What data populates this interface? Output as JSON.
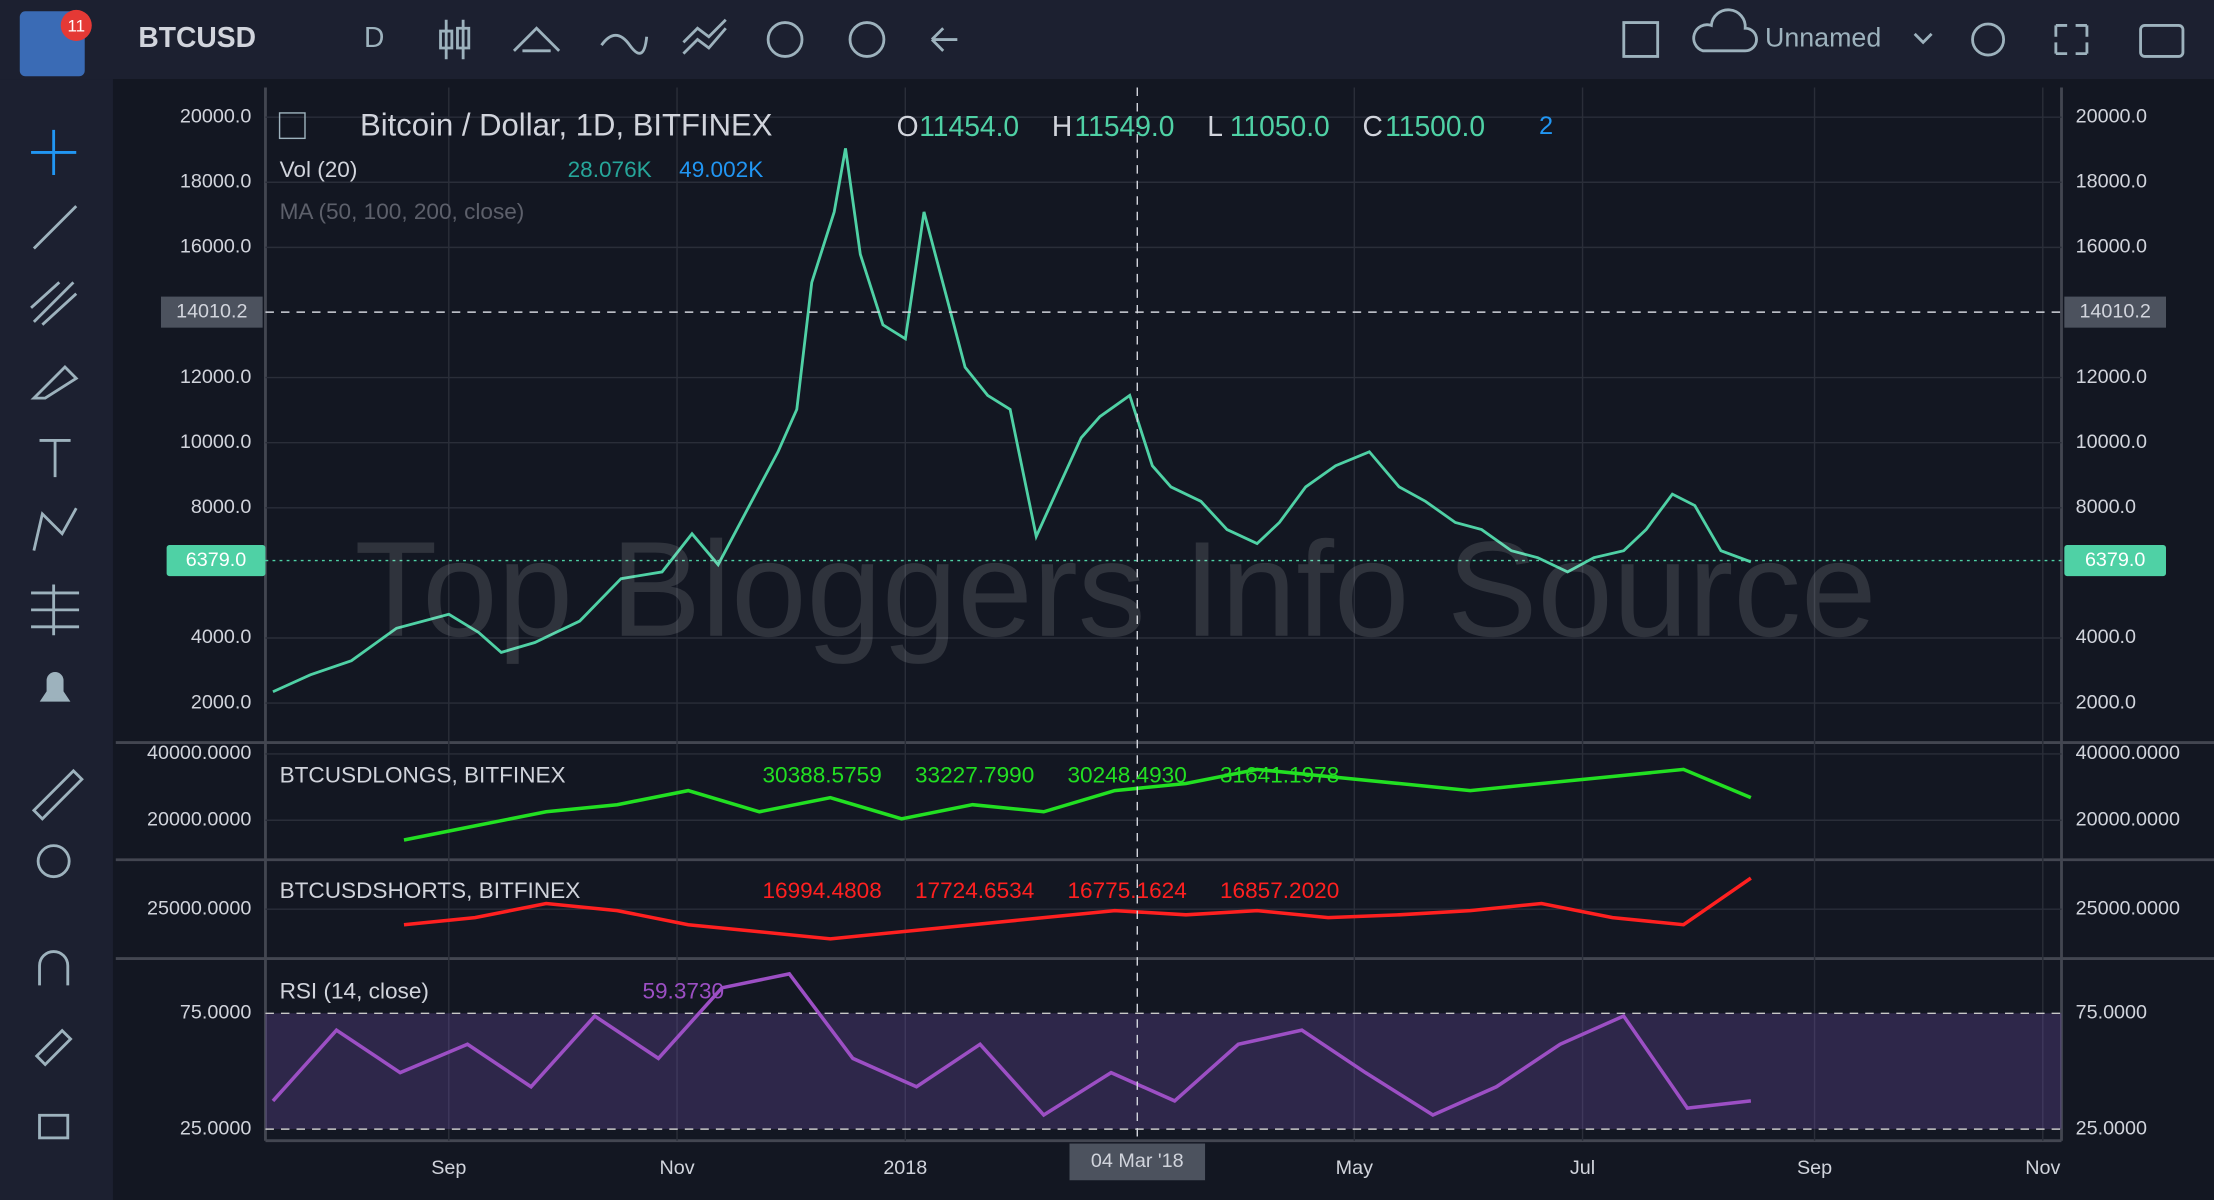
{
  "toolbar": {
    "badge": "11",
    "symbol": "BTCUSD",
    "interval": "D",
    "layout_name": "Unnamed"
  },
  "watermark": "Top Bloggers Info Source",
  "legend": {
    "title": "Bitcoin / Dollar, 1D, BITFINEX",
    "ohlc": [
      {
        "key": "O",
        "value": "11454.0"
      },
      {
        "key": "H",
        "value": "11549.0"
      },
      {
        "key": "L",
        "value": "11050.0"
      },
      {
        "key": "C",
        "value": "11500.0"
      }
    ],
    "alerts": "2",
    "volume": {
      "name": "Vol (20)",
      "values": [
        "28.076K",
        "49.002K"
      ]
    },
    "ma": "MA (50, 100, 200, close)"
  },
  "xlim": [
    -18,
    462
  ],
  "xticks": [
    {
      "value": 31,
      "label": "Sep"
    },
    {
      "value": 92,
      "label": "Nov"
    },
    {
      "value": 153,
      "label": "2018"
    },
    {
      "value": 273,
      "label": "May"
    },
    {
      "value": 334,
      "label": "Jul"
    },
    {
      "value": 396,
      "label": "Sep"
    },
    {
      "value": 457,
      "label": "Nov"
    }
  ],
  "crosshair": {
    "x": {
      "value": 215,
      "label": "04 Mar '18"
    },
    "y": {
      "value": 14010.2,
      "label": "14010.2"
    }
  },
  "price_pane": {
    "type": "line",
    "color": "#4fd1a5",
    "ylim": [
      830,
      20910
    ],
    "yticks": [
      {
        "value": 2000,
        "label": "2000.0"
      },
      {
        "value": 4000,
        "label": "4000.0"
      },
      {
        "value": 8000,
        "label": "8000.0"
      },
      {
        "value": 10000,
        "label": "10000.0"
      },
      {
        "value": 12000,
        "label": "12000.0"
      },
      {
        "value": 16000,
        "label": "16000.0"
      },
      {
        "value": 18000,
        "label": "18000.0"
      },
      {
        "value": 20000,
        "label": "20000.0"
      }
    ],
    "last_price": {
      "value": 6379.0,
      "label": "6379.0"
    },
    "x": [
      -16,
      -6,
      5,
      17,
      31,
      39,
      45,
      54,
      66,
      77,
      88,
      96,
      103,
      111,
      119,
      124,
      128,
      134,
      137,
      141,
      147,
      153,
      158,
      164,
      169,
      175,
      181,
      188,
      194,
      200,
      205,
      213,
      219,
      224,
      232,
      239,
      247,
      253,
      260,
      268,
      277,
      285,
      292,
      300,
      307,
      315,
      322,
      330,
      337,
      345,
      351,
      358,
      364,
      371,
      379
    ],
    "values": [
      2350,
      2870,
      3300,
      4300,
      4730,
      4170,
      3560,
      3860,
      4520,
      5820,
      6030,
      7200,
      6250,
      7990,
      9720,
      11020,
      14920,
      17090,
      19040,
      15790,
      13620,
      13190,
      17090,
      14490,
      12320,
      11450,
      11020,
      7120,
      8640,
      10150,
      10800,
      11450,
      9290,
      8640,
      8200,
      7330,
      6900,
      7550,
      8640,
      9290,
      9720,
      8640,
      8200,
      7550,
      7330,
      6680,
      6470,
      6030,
      6470,
      6680,
      7330,
      8420,
      8070,
      6680,
      6340
    ]
  },
  "longs_pane": {
    "type": "line",
    "name": "BTCUSDLONGS, BITFINEX",
    "color": "#22e022",
    "legend_values": [
      "30388.5759",
      "33227.7990",
      "30248.4930",
      "31641.1978"
    ],
    "ylim": [
      8500,
      43000
    ],
    "yticks": [
      {
        "value": 40000,
        "label": "40000.0000"
      },
      {
        "value": 20000,
        "label": "20000.0000"
      }
    ],
    "x": [
      19,
      38,
      57,
      76,
      95,
      114,
      133,
      152,
      171,
      190,
      209,
      228,
      247,
      266,
      285,
      304,
      323,
      342,
      361,
      379
    ],
    "values": [
      14040,
      18300,
      22550,
      24680,
      28940,
      22550,
      26810,
      20430,
      24680,
      22550,
      28940,
      31060,
      35320,
      33190,
      31060,
      28940,
      31060,
      33190,
      35320,
      26810
    ]
  },
  "shorts_pane": {
    "type": "line",
    "name": "BTCUSDSHORTS, BITFINEX",
    "color": "#ff2020",
    "legend_values": [
      "16994.4808",
      "17724.6534",
      "16775.1624",
      "16857.2020"
    ],
    "ylim": [
      18000,
      32000
    ],
    "yticks": [
      {
        "value": 25000,
        "label": "25000.0000"
      }
    ],
    "x": [
      19,
      38,
      57,
      76,
      95,
      114,
      133,
      152,
      171,
      190,
      209,
      228,
      247,
      266,
      285,
      304,
      323,
      342,
      361,
      379
    ],
    "values": [
      22740,
      23760,
      25820,
      24790,
      22740,
      21710,
      20680,
      21710,
      22740,
      23760,
      24790,
      24180,
      24790,
      23760,
      24180,
      24790,
      25820,
      23760,
      22740,
      29530
    ]
  },
  "rsi_pane": {
    "type": "line",
    "name": "RSI (14, close)",
    "color": "#9c4fc4",
    "legend_value": "59.3730",
    "ylim": [
      20,
      98
    ],
    "yticks": [
      {
        "value": 75,
        "label": "75.0000"
      },
      {
        "value": 25,
        "label": "25.0000"
      }
    ],
    "x": [
      -16,
      1,
      18,
      36,
      53,
      70,
      87,
      104,
      122,
      139,
      156,
      173,
      190,
      208,
      225,
      242,
      259,
      276,
      294,
      311,
      328,
      345,
      362,
      379
    ],
    "values": [
      37.2,
      67.7,
      49.4,
      61.6,
      43.3,
      73.8,
      55.5,
      86,
      92,
      55.5,
      43.3,
      61.6,
      31.1,
      49.4,
      37.2,
      61.6,
      67.7,
      49.4,
      31.1,
      43.3,
      61.6,
      73.8,
      34.1,
      37.2
    ]
  }
}
